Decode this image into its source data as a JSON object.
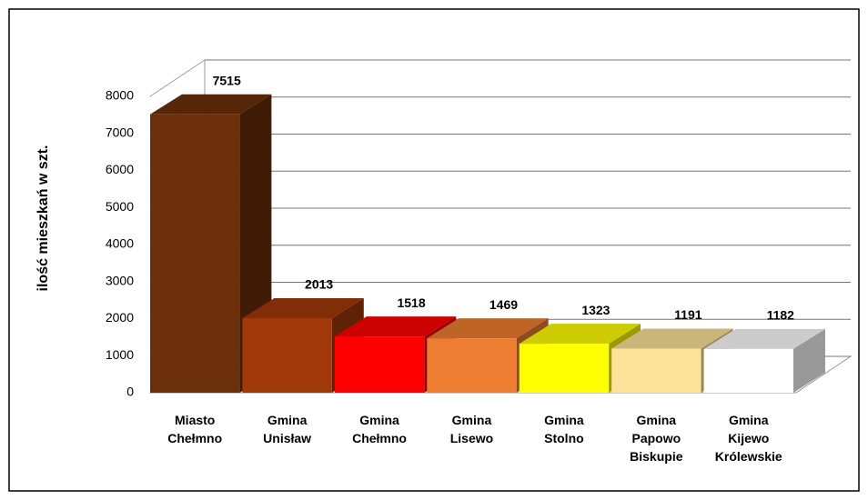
{
  "chart_data": {
    "type": "bar3d",
    "y_label": "ilość mieszkań w szt.",
    "categories": [
      "Miasto\nChełmno",
      "Gmina\nUnisław",
      "Gmina\nChełmno",
      "Gmina\nLisewo",
      "Gmina\nStolno",
      "Gmina\nPapowo\nBiskupie",
      "Gmina\nKijewo\nKrólewskie"
    ],
    "values": [
      7515,
      2013,
      1518,
      1469,
      1323,
      1191,
      1182
    ],
    "colors": [
      "#6b2f0a",
      "#a0380a",
      "#ff0000",
      "#ed7d31",
      "#ffff00",
      "#fde39a",
      "#ffffff"
    ],
    "ylim": [
      0,
      8000
    ],
    "yticks": [
      0,
      1000,
      2000,
      3000,
      4000,
      5000,
      6000,
      7000,
      8000
    ],
    "grid": true
  }
}
